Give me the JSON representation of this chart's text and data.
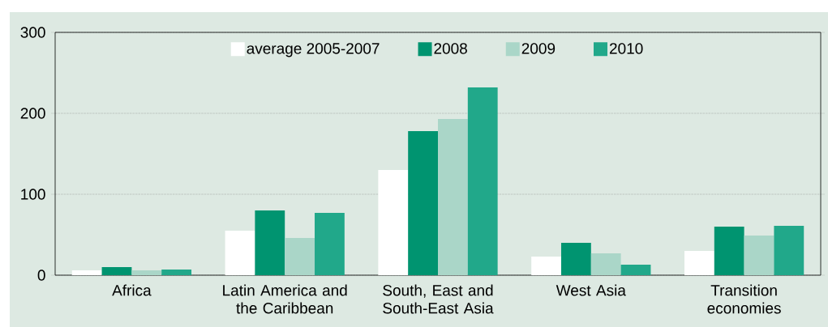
{
  "chart_data": {
    "type": "bar",
    "categories": [
      "Africa",
      "Latin America and the Caribbean",
      "South, East and South-East Asia",
      "West Asia",
      "Transition economies"
    ],
    "series": [
      {
        "name": "average 2005-2007",
        "color": "#ffffff",
        "values": [
          6,
          55,
          130,
          23,
          30
        ]
      },
      {
        "name": "2008",
        "color": "#009470",
        "values": [
          10,
          80,
          178,
          40,
          60
        ]
      },
      {
        "name": "2009",
        "color": "#aad6c8",
        "values": [
          6,
          46,
          193,
          27,
          49
        ]
      },
      {
        "name": "2010",
        "color": "#21a88a",
        "values": [
          7,
          77,
          232,
          13,
          61
        ]
      }
    ],
    "ylim": [
      0,
      300
    ],
    "yticks": [
      0,
      100,
      200,
      300
    ],
    "grid": "y",
    "legend": "top"
  }
}
